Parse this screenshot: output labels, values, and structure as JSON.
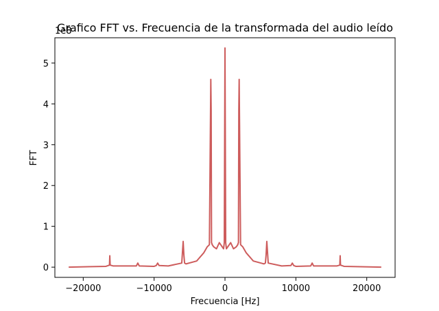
{
  "chart_data": {
    "type": "line",
    "title": "Grafico FFT vs. Frecuencia de la transformada del audio leído",
    "xlabel": "Frecuencia [Hz]",
    "ylabel": "FFT",
    "y_multiplier_label": "1e8",
    "xlim": [
      -24000,
      24000
    ],
    "ylim": [
      -0.25,
      5.62
    ],
    "x_ticks": [
      -20000,
      -10000,
      0,
      10000,
      20000
    ],
    "x_tick_labels": [
      "−20000",
      "−10000",
      "0",
      "10000",
      "20000"
    ],
    "y_ticks": [
      0,
      1,
      2,
      3,
      4,
      5
    ],
    "y_tick_labels": [
      "0",
      "1",
      "2",
      "3",
      "4",
      "5"
    ],
    "grid": false,
    "line_color": "#cd5c5c",
    "series": [
      {
        "x": [
          -22050,
          -16800,
          -16300,
          -16250,
          -16200,
          -15800,
          -12500,
          -12300,
          -12100,
          -10000,
          -9700,
          -9500,
          -9300,
          -8000,
          -6100,
          -5900,
          -5800,
          -5700,
          -5500,
          -4000,
          -3000,
          -2500,
          -2200,
          -2000,
          -1950,
          -1900,
          -1850,
          -1800,
          -1600,
          -1200,
          -800,
          -600,
          -400,
          -200,
          -100,
          0,
          100,
          200,
          400,
          600,
          800,
          1200,
          1600,
          1800,
          1850,
          1900,
          1950,
          2000,
          2200,
          2500,
          3000,
          4000,
          5500,
          5700,
          5800,
          5900,
          6100,
          8000,
          9300,
          9500,
          9700,
          10000,
          12100,
          12300,
          12500,
          15800,
          16200,
          16250,
          16300,
          16800,
          22050
        ],
        "y": [
          0.0,
          0.02,
          0.05,
          0.28,
          0.05,
          0.03,
          0.03,
          0.1,
          0.03,
          0.02,
          0.04,
          0.1,
          0.04,
          0.03,
          0.1,
          0.63,
          0.3,
          0.1,
          0.08,
          0.15,
          0.35,
          0.5,
          0.55,
          4.6,
          3.85,
          0.6,
          0.58,
          0.55,
          0.5,
          0.45,
          0.6,
          0.55,
          0.5,
          0.45,
          0.6,
          5.37,
          0.6,
          0.45,
          0.5,
          0.55,
          0.6,
          0.45,
          0.5,
          0.55,
          0.58,
          0.6,
          3.85,
          4.6,
          0.55,
          0.5,
          0.35,
          0.15,
          0.08,
          0.1,
          0.3,
          0.63,
          0.1,
          0.03,
          0.04,
          0.1,
          0.04,
          0.02,
          0.03,
          0.1,
          0.03,
          0.03,
          0.05,
          0.28,
          0.05,
          0.02,
          0.0
        ]
      }
    ]
  }
}
